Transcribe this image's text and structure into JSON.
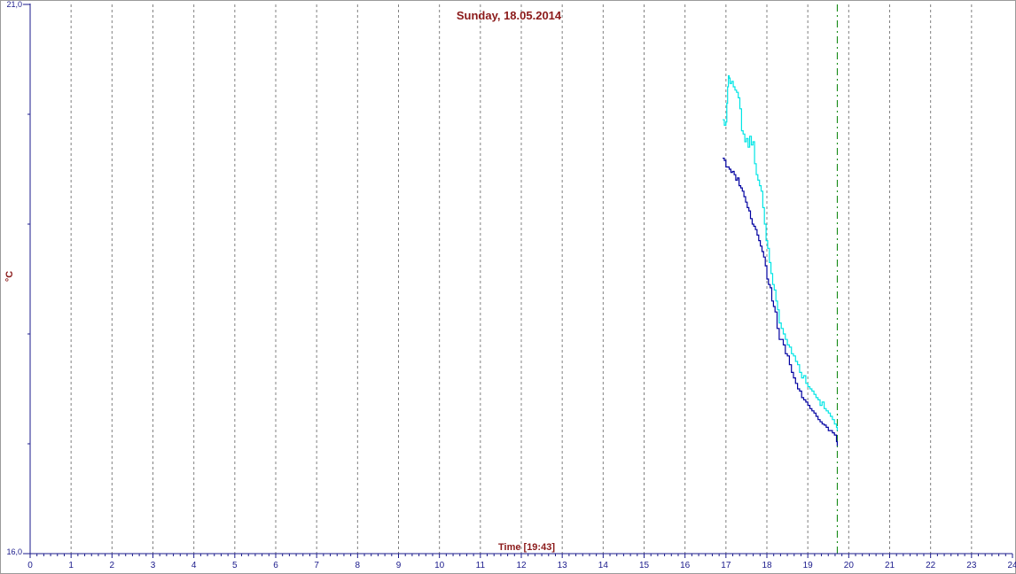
{
  "chart_data": {
    "type": "line",
    "title": "Sunday, 18.05.2014",
    "xlabel": "Time [19:43]",
    "ylabel": "°C",
    "xlim": [
      0,
      24
    ],
    "ylim": [
      16.0,
      21.0
    ],
    "x_ticks": [
      "0",
      "1",
      "2",
      "3",
      "4",
      "5",
      "6",
      "7",
      "8",
      "9",
      "10",
      "11",
      "12",
      "13",
      "14",
      "15",
      "16",
      "17",
      "18",
      "19",
      "20",
      "21",
      "22",
      "23",
      "24"
    ],
    "y_tick_labels": {
      "top": "21,0",
      "bottom": "16,0"
    },
    "y_minor_ticks": [
      20.0,
      19.0,
      18.0,
      17.0
    ],
    "grid": "vertical dashed",
    "current_time_marker": 19.72,
    "series": [
      {
        "color": "#00e5e5",
        "x": [
          16.92,
          16.96,
          17.0,
          17.02,
          17.04,
          17.06,
          17.08,
          17.1,
          17.14,
          17.18,
          17.22,
          17.26,
          17.3,
          17.34,
          17.38,
          17.42,
          17.46,
          17.5,
          17.54,
          17.58,
          17.62,
          17.66,
          17.7,
          17.74,
          17.78,
          17.82,
          17.86,
          17.9,
          17.94,
          17.98,
          18.02,
          18.06,
          18.1,
          18.14,
          18.18,
          18.22,
          18.26,
          18.3,
          18.35,
          18.4,
          18.45,
          18.5,
          18.55,
          18.6,
          18.65,
          18.7,
          18.75,
          18.8,
          18.85,
          18.9,
          18.95,
          19.0,
          19.05,
          19.1,
          19.15,
          19.2,
          19.25,
          19.3,
          19.35,
          19.4,
          19.45,
          19.5,
          19.55,
          19.6,
          19.65,
          19.7,
          19.72
        ],
        "y": [
          19.95,
          19.9,
          19.93,
          20.1,
          20.25,
          20.35,
          20.33,
          20.28,
          20.3,
          20.25,
          20.22,
          20.2,
          20.15,
          20.05,
          19.85,
          19.82,
          19.75,
          19.78,
          19.7,
          19.8,
          19.72,
          19.75,
          19.55,
          19.45,
          19.4,
          19.35,
          19.3,
          19.15,
          19.0,
          18.85,
          18.78,
          18.65,
          18.55,
          18.45,
          18.4,
          18.3,
          18.22,
          18.1,
          18.05,
          18.0,
          17.95,
          17.9,
          17.88,
          17.82,
          17.8,
          17.75,
          17.72,
          17.65,
          17.6,
          17.62,
          17.55,
          17.52,
          17.5,
          17.48,
          17.45,
          17.42,
          17.4,
          17.35,
          17.38,
          17.32,
          17.3,
          17.28,
          17.25,
          17.22,
          17.18,
          17.15,
          17.12
        ]
      },
      {
        "color": "#0000a0",
        "x": [
          16.92,
          16.96,
          17.0,
          17.04,
          17.08,
          17.12,
          17.16,
          17.2,
          17.24,
          17.28,
          17.32,
          17.36,
          17.4,
          17.44,
          17.48,
          17.52,
          17.56,
          17.6,
          17.64,
          17.68,
          17.72,
          17.76,
          17.8,
          17.84,
          17.88,
          17.92,
          17.96,
          18.0,
          18.04,
          18.08,
          18.12,
          18.16,
          18.2,
          18.25,
          18.3,
          18.35,
          18.4,
          18.45,
          18.5,
          18.55,
          18.6,
          18.65,
          18.7,
          18.75,
          18.8,
          18.85,
          18.9,
          18.95,
          19.0,
          19.05,
          19.1,
          19.15,
          19.2,
          19.25,
          19.3,
          19.35,
          19.4,
          19.45,
          19.5,
          19.55,
          19.6,
          19.65,
          19.7,
          19.72
        ],
        "y": [
          19.6,
          19.58,
          19.52,
          19.52,
          19.5,
          19.47,
          19.48,
          19.45,
          19.4,
          19.42,
          19.35,
          19.33,
          19.3,
          19.25,
          19.2,
          19.15,
          19.12,
          19.05,
          19.0,
          18.98,
          18.95,
          18.9,
          18.85,
          18.8,
          18.75,
          18.7,
          18.62,
          18.5,
          18.45,
          18.42,
          18.3,
          18.25,
          18.2,
          18.05,
          17.95,
          17.95,
          17.9,
          17.82,
          17.8,
          17.72,
          17.65,
          17.6,
          17.55,
          17.5,
          17.48,
          17.42,
          17.4,
          17.38,
          17.35,
          17.32,
          17.3,
          17.28,
          17.25,
          17.22,
          17.2,
          17.18,
          17.17,
          17.15,
          17.12,
          17.12,
          17.1,
          17.08,
          17.02,
          16.98
        ]
      }
    ]
  }
}
